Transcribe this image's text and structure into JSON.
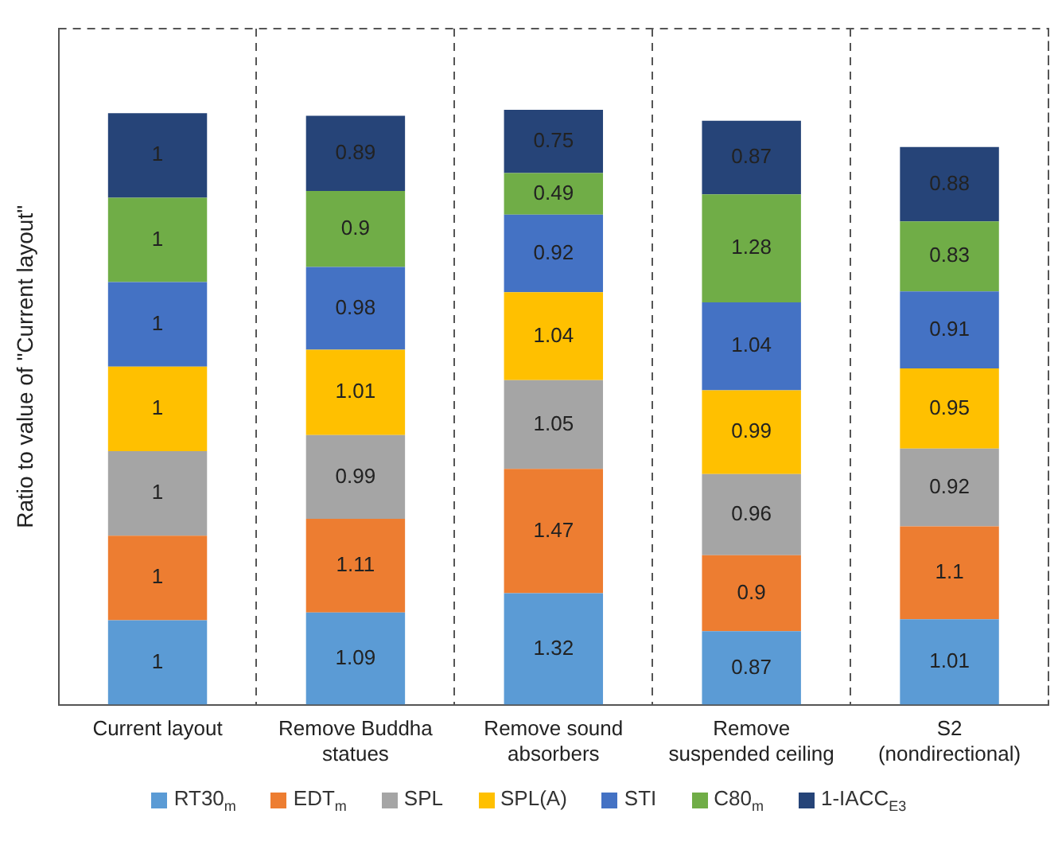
{
  "chart_data": {
    "type": "bar",
    "stacked": true,
    "ylabel": "Ratio to value of \"Current layout\"",
    "categories": [
      "Current layout",
      "Remove Buddha statues",
      "Remove sound absorbers",
      "Remove suspended ceiling",
      "S2 (nondirectional)"
    ],
    "series": [
      {
        "name": "RT30$_{m}$",
        "color": "#5b9bd5",
        "values": [
          1,
          1.09,
          1.32,
          0.87,
          1.01
        ]
      },
      {
        "name": "EDT$_{m}$",
        "color": "#ed7d31",
        "values": [
          1,
          1.11,
          1.47,
          0.9,
          1.1
        ]
      },
      {
        "name": "SPL",
        "color": "#a5a5a5",
        "values": [
          1,
          0.99,
          1.05,
          0.96,
          0.92
        ]
      },
      {
        "name": "SPL(A)",
        "color": "#ffc000",
        "values": [
          1,
          1.01,
          1.04,
          0.99,
          0.95
        ]
      },
      {
        "name": "STI",
        "color": "#4472c4",
        "values": [
          1,
          0.98,
          0.92,
          1.04,
          0.91
        ]
      },
      {
        "name": "C80$_{m}$",
        "color": "#70ad47",
        "values": [
          1,
          0.9,
          0.49,
          1.28,
          0.83
        ]
      },
      {
        "name": "1-IACC$_{E3}$",
        "color": "#264478",
        "values": [
          1,
          0.89,
          0.75,
          0.87,
          0.88
        ]
      }
    ],
    "ylim": [
      0,
      8
    ],
    "tick_labels": "x",
    "grid": "x",
    "data_labels": true,
    "legend": "bottom"
  }
}
